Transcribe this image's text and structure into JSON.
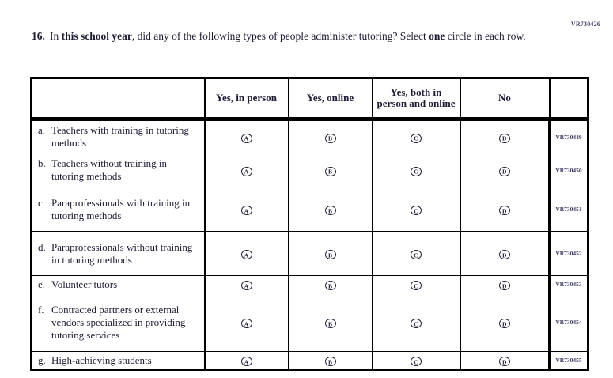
{
  "page": {
    "vr_code_top": "VR730426",
    "question": {
      "number": "16.",
      "parts": [
        {
          "text": "In ",
          "bold": false
        },
        {
          "text": "this school year",
          "bold": true
        },
        {
          "text": ", did any of the following types of people administer tutoring? Select ",
          "bold": false
        },
        {
          "text": "one",
          "bold": true
        },
        {
          "text": " circle in each row.",
          "bold": false
        }
      ]
    },
    "table": {
      "columns": [
        "",
        "Yes, in person",
        "Yes, online",
        "Yes, both in person and online",
        "No",
        ""
      ],
      "options": [
        "A",
        "B",
        "C",
        "D"
      ],
      "rows": [
        {
          "letter": "a.",
          "label": "Teachers with training in tutoring methods",
          "vr": "VR730449"
        },
        {
          "letter": "b.",
          "label": "Teachers without training in tutoring methods",
          "vr": "VR730450"
        },
        {
          "letter": "c.",
          "label": "Paraprofessionals with training in tutoring methods",
          "vr": "VR730451"
        },
        {
          "letter": "d.",
          "label": "Paraprofessionals without training in tutoring methods",
          "vr": "VR730452"
        },
        {
          "letter": "e.",
          "label": "Volunteer tutors",
          "vr": "VR730453"
        },
        {
          "letter": "f.",
          "label": "Contracted partners or external vendors specialized in providing tutoring services",
          "vr": "VR730454"
        },
        {
          "letter": "g.",
          "label": "High-achieving students",
          "vr": "VR730455"
        }
      ]
    }
  }
}
